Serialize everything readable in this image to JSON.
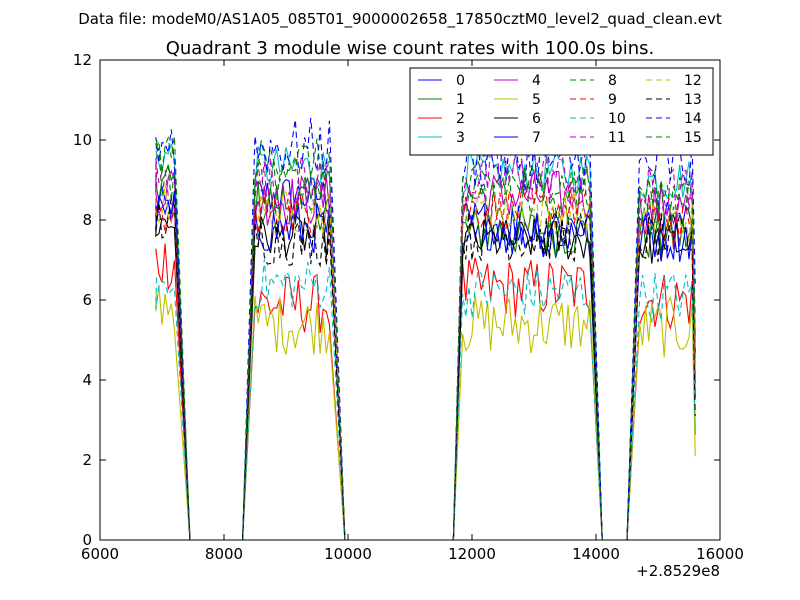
{
  "figure": {
    "suptitle": "Data file: modeM0/AS1A05_085T01_9000002658_17850cztM0_level2_quad_clean.evt"
  },
  "chart_data": {
    "type": "line",
    "title": "Quadrant 3 module wise count rates with 100.0s bins.",
    "xlabel": "",
    "ylabel": "",
    "x_offset_label": "+2.8529e8",
    "xlim": [
      6000,
      16000
    ],
    "ylim": [
      0,
      12
    ],
    "xticks": [
      6000,
      8000,
      10000,
      12000,
      14000,
      16000
    ],
    "yticks": [
      0,
      2,
      4,
      6,
      8,
      10,
      12
    ],
    "legend": {
      "placement": "top-right",
      "columns": 4
    },
    "segments": [
      {
        "x_start": 6900,
        "x_end": 7200,
        "step": 50
      },
      {
        "x_start": 8500,
        "x_end": 9700,
        "step": 50
      },
      {
        "x_start": 11850,
        "x_end": 13900,
        "step": 50
      },
      {
        "x_start": 14700,
        "x_end": 15550,
        "step": 50
      }
    ],
    "edges": [
      {
        "from": 7200,
        "to": 7450
      },
      {
        "from": 8300,
        "to": 8500
      },
      {
        "from": 9700,
        "to": 9950
      },
      {
        "from": 11700,
        "to": 11850
      },
      {
        "from": 13900,
        "to": 14100
      },
      {
        "from": 14500,
        "to": 14700
      }
    ],
    "series": [
      {
        "name": "0",
        "color": "#0000ff",
        "dash": "solid",
        "levels": [
          8.3,
          8.6,
          7.6,
          8.0
        ]
      },
      {
        "name": "1",
        "color": "#008000",
        "dash": "solid",
        "levels": [
          8.9,
          8.4,
          7.7,
          7.6
        ]
      },
      {
        "name": "2",
        "color": "#ff0000",
        "dash": "solid",
        "levels": [
          7.0,
          5.9,
          6.3,
          6.0
        ]
      },
      {
        "name": "3",
        "color": "#00bfbf",
        "dash": "solid",
        "levels": [
          9.6,
          9.3,
          9.2,
          9.0
        ]
      },
      {
        "name": "4",
        "color": "#bf00bf",
        "dash": "solid",
        "levels": [
          8.8,
          8.5,
          8.6,
          8.3
        ]
      },
      {
        "name": "5",
        "color": "#bfbf00",
        "dash": "solid",
        "levels": [
          6.0,
          5.4,
          5.4,
          5.3
        ]
      },
      {
        "name": "6",
        "color": "#000000",
        "dash": "solid",
        "levels": [
          7.9,
          7.6,
          7.5,
          7.4
        ]
      },
      {
        "name": "7",
        "color": "#0000ff",
        "dash": "solid",
        "levels": [
          8.1,
          7.8,
          7.9,
          7.6
        ]
      },
      {
        "name": "8",
        "color": "#008000",
        "dash": "dashed",
        "levels": [
          9.2,
          9.0,
          8.6,
          8.4
        ]
      },
      {
        "name": "9",
        "color": "#ff0000",
        "dash": "dashed",
        "levels": [
          8.0,
          8.2,
          8.3,
          7.8
        ]
      },
      {
        "name": "10",
        "color": "#00bfbf",
        "dash": "dashed",
        "levels": [
          6.3,
          6.4,
          6.2,
          6.1
        ]
      },
      {
        "name": "11",
        "color": "#bf00bf",
        "dash": "dashed",
        "levels": [
          9.0,
          8.9,
          9.1,
          8.6
        ]
      },
      {
        "name": "12",
        "color": "#bfbf00",
        "dash": "dashed",
        "levels": [
          8.4,
          8.2,
          8.2,
          8.0
        ]
      },
      {
        "name": "13",
        "color": "#000000",
        "dash": "dashed",
        "levels": [
          8.0,
          7.5,
          7.6,
          7.5
        ]
      },
      {
        "name": "14",
        "color": "#0000ff",
        "dash": "dashed",
        "levels": [
          10.0,
          9.8,
          9.5,
          9.3
        ]
      },
      {
        "name": "15",
        "color": "#008000",
        "dash": "dashed",
        "levels": [
          9.7,
          9.5,
          8.9,
          8.7
        ]
      }
    ]
  }
}
